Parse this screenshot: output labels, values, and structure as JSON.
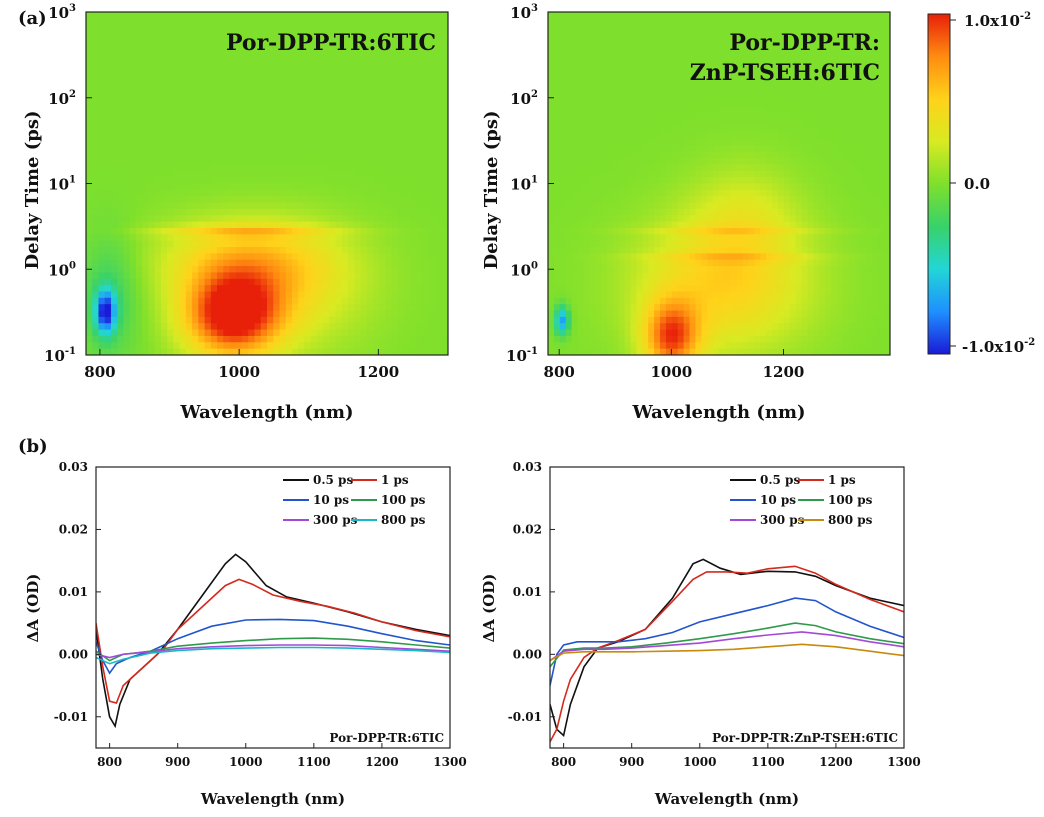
{
  "panel_labels": {
    "a": "(a)",
    "b": "(b)"
  },
  "colorbar": {
    "max_label": "1.0x10",
    "max_exp": "-2",
    "zero_label": "0.0",
    "min_label": "-1.0x10",
    "min_exp": "-2",
    "stops": [
      "#1a1ad8",
      "#1e90ff",
      "#22d6d6",
      "#38d26a",
      "#7ee02c",
      "#d8ea22",
      "#ffd21a",
      "#ff8c10",
      "#e8200a"
    ]
  },
  "chart_data": [
    {
      "type": "heatmap",
      "title": "Por-DPP-TR:6TIC",
      "xlabel": "Wavelength (nm)",
      "ylabel": "Delay Time (ps)",
      "xlim": [
        780,
        1300
      ],
      "ylim_log10": [
        -1,
        3
      ],
      "xticks": [
        800,
        1000,
        1200
      ],
      "yticks": [
        {
          "exp": -1,
          "base": "10",
          "sup": "-1"
        },
        {
          "exp": 0,
          "base": "10",
          "sup": "0"
        },
        {
          "exp": 1,
          "base": "10",
          "sup": "1"
        },
        {
          "exp": 2,
          "base": "10",
          "sup": "2"
        },
        {
          "exp": 3,
          "base": "10",
          "sup": "3"
        }
      ],
      "features": [
        {
          "wl": 990,
          "logt": -0.55,
          "sw": 50,
          "st": 0.35,
          "amp": 0.0105
        },
        {
          "wl": 1010,
          "logt": 0.1,
          "sw": 90,
          "st": 0.35,
          "amp": 0.0045
        },
        {
          "wl": 1080,
          "logt": -0.3,
          "sw": 80,
          "st": 0.5,
          "amp": 0.0025
        },
        {
          "wl": 1010,
          "logt": 0.44,
          "sw": 90,
          "st": 0.05,
          "amp": 0.003
        },
        {
          "wl": 808,
          "logt": -0.5,
          "sw": 10,
          "st": 0.18,
          "amp": -0.009
        },
        {
          "wl": 815,
          "logt": -0.3,
          "sw": 30,
          "st": 0.5,
          "amp": -0.0025
        }
      ]
    },
    {
      "type": "heatmap",
      "title": "Por-DPP-TR:",
      "title_line2": "ZnP-TSEH:6TIC",
      "xlabel": "Wavelength (nm)",
      "ylabel": "Delay Time (ps)",
      "xlim": [
        780,
        1390
      ],
      "ylim_log10": [
        -1,
        3
      ],
      "xticks": [
        800,
        1000,
        1200
      ],
      "yticks": [
        {
          "exp": -1,
          "base": "10",
          "sup": "-1"
        },
        {
          "exp": 0,
          "base": "10",
          "sup": "0"
        },
        {
          "exp": 1,
          "base": "10",
          "sup": "1"
        },
        {
          "exp": 2,
          "base": "10",
          "sup": "2"
        },
        {
          "exp": 3,
          "base": "10",
          "sup": "3"
        }
      ],
      "features": [
        {
          "wl": 1000,
          "logt": -0.8,
          "sw": 35,
          "st": 0.3,
          "amp": 0.008
        },
        {
          "wl": 1090,
          "logt": -0.2,
          "sw": 110,
          "st": 0.55,
          "amp": 0.0048
        },
        {
          "wl": 1130,
          "logt": 0.6,
          "sw": 70,
          "st": 0.45,
          "amp": 0.0022
        },
        {
          "wl": 1100,
          "logt": 0.13,
          "sw": 110,
          "st": 0.04,
          "amp": 0.0015
        },
        {
          "wl": 1100,
          "logt": 0.45,
          "sw": 110,
          "st": 0.04,
          "amp": 0.0015
        },
        {
          "wl": 805,
          "logt": -0.6,
          "sw": 9,
          "st": 0.12,
          "amp": -0.007
        }
      ]
    },
    {
      "type": "line",
      "inset_label": "Por-DPP-TR:6TIC",
      "xlabel": "Wavelength (nm)",
      "ylabel": "ΔA (OD)",
      "xlim": [
        780,
        1300
      ],
      "ylim": [
        -0.015,
        0.03
      ],
      "xticks": [
        800,
        900,
        1000,
        1100,
        1200,
        1300
      ],
      "yticks": [
        -0.01,
        0.0,
        0.01,
        0.02,
        0.03
      ],
      "ytick_labels": [
        "-0.01",
        "0.00",
        "0.01",
        "0.02",
        "0.03"
      ],
      "series": [
        {
          "name": "0.5 ps",
          "color": "#111111",
          "x": [
            780,
            790,
            800,
            808,
            815,
            830,
            850,
            870,
            900,
            940,
            970,
            985,
            1000,
            1030,
            1060,
            1100,
            1150,
            1200,
            1250,
            1300
          ],
          "y": [
            0.004,
            -0.004,
            -0.01,
            -0.0115,
            -0.008,
            -0.004,
            -0.002,
            0.0,
            0.004,
            0.01,
            0.0145,
            0.016,
            0.0148,
            0.011,
            0.0092,
            0.0082,
            0.0068,
            0.0052,
            0.004,
            0.003
          ]
        },
        {
          "name": "1 ps",
          "color": "#d42a1e",
          "x": [
            780,
            790,
            800,
            810,
            820,
            840,
            860,
            880,
            900,
            940,
            970,
            990,
            1010,
            1040,
            1080,
            1120,
            1160,
            1200,
            1250,
            1300
          ],
          "y": [
            0.005,
            -0.002,
            -0.0075,
            -0.0078,
            -0.005,
            -0.003,
            -0.001,
            0.001,
            0.004,
            0.008,
            0.011,
            0.012,
            0.0112,
            0.0095,
            0.0085,
            0.0077,
            0.0066,
            0.0052,
            0.0038,
            0.0028
          ]
        },
        {
          "name": "10 ps",
          "color": "#2255cc",
          "x": [
            780,
            790,
            800,
            810,
            830,
            860,
            900,
            950,
            1000,
            1050,
            1100,
            1150,
            1200,
            1250,
            1300
          ],
          "y": [
            0.002,
            -0.001,
            -0.003,
            -0.0015,
            -0.0005,
            0.0005,
            0.0025,
            0.0045,
            0.0055,
            0.0056,
            0.0054,
            0.0045,
            0.0033,
            0.0022,
            0.0015
          ]
        },
        {
          "name": "100 ps",
          "color": "#2f9a4a",
          "x": [
            780,
            800,
            820,
            860,
            900,
            950,
            1000,
            1050,
            1100,
            1150,
            1200,
            1250,
            1300
          ],
          "y": [
            0.0005,
            -0.001,
            0.0,
            0.0005,
            0.0013,
            0.0018,
            0.0022,
            0.0025,
            0.0026,
            0.0024,
            0.002,
            0.0015,
            0.001
          ]
        },
        {
          "name": "300 ps",
          "color": "#a24ad6",
          "x": [
            780,
            800,
            820,
            860,
            900,
            950,
            1000,
            1050,
            1100,
            1150,
            1200,
            1250,
            1300
          ],
          "y": [
            0.0,
            -0.0005,
            0.0,
            0.0004,
            0.0009,
            0.0012,
            0.0014,
            0.0015,
            0.0015,
            0.0014,
            0.0011,
            0.0008,
            0.0005
          ]
        },
        {
          "name": "800 ps",
          "color": "#19b8c8",
          "x": [
            780,
            800,
            820,
            860,
            900,
            950,
            1000,
            1050,
            1100,
            1150,
            1200,
            1250,
            1300
          ],
          "y": [
            -0.0005,
            -0.0015,
            -0.0008,
            0.0002,
            0.0006,
            0.0009,
            0.001,
            0.0011,
            0.0011,
            0.001,
            0.0008,
            0.0006,
            0.0003
          ]
        }
      ]
    },
    {
      "type": "line",
      "inset_label": "Por-DPP-TR:ZnP-TSEH:6TIC",
      "xlabel": "Wavelength (nm)",
      "ylabel": "ΔA (OD)",
      "xlim": [
        780,
        1300
      ],
      "ylim": [
        -0.015,
        0.03
      ],
      "xticks": [
        800,
        900,
        1000,
        1100,
        1200,
        1300
      ],
      "yticks": [
        -0.01,
        0.0,
        0.01,
        0.02,
        0.03
      ],
      "ytick_labels": [
        "-0.01",
        "0.00",
        "0.01",
        "0.02",
        "0.03"
      ],
      "series": [
        {
          "name": "0.5 ps",
          "color": "#111111",
          "x": [
            780,
            790,
            800,
            810,
            830,
            850,
            880,
            920,
            960,
            990,
            1005,
            1030,
            1060,
            1100,
            1140,
            1170,
            1200,
            1250,
            1300
          ],
          "y": [
            -0.008,
            -0.012,
            -0.013,
            -0.008,
            -0.002,
            0.001,
            0.002,
            0.004,
            0.009,
            0.0145,
            0.0152,
            0.0138,
            0.0128,
            0.0133,
            0.0132,
            0.0125,
            0.011,
            0.009,
            0.0078
          ]
        },
        {
          "name": "1 ps",
          "color": "#d42a1e",
          "x": [
            780,
            790,
            800,
            810,
            830,
            850,
            880,
            920,
            960,
            990,
            1010,
            1040,
            1070,
            1100,
            1140,
            1170,
            1200,
            1250,
            1300
          ],
          "y": [
            -0.014,
            -0.012,
            -0.0075,
            -0.004,
            -0.0005,
            0.001,
            0.0022,
            0.004,
            0.0085,
            0.012,
            0.0132,
            0.0132,
            0.013,
            0.0137,
            0.0141,
            0.013,
            0.0112,
            0.0088,
            0.0068
          ]
        },
        {
          "name": "10 ps",
          "color": "#2255cc",
          "x": [
            780,
            790,
            800,
            820,
            850,
            880,
            920,
            960,
            1000,
            1050,
            1100,
            1140,
            1170,
            1200,
            1250,
            1300
          ],
          "y": [
            -0.005,
            0.0,
            0.0015,
            0.002,
            0.002,
            0.002,
            0.0025,
            0.0035,
            0.0052,
            0.0065,
            0.0078,
            0.009,
            0.0086,
            0.0068,
            0.0045,
            0.0027
          ]
        },
        {
          "name": "100 ps",
          "color": "#2f9a4a",
          "x": [
            780,
            800,
            830,
            860,
            900,
            950,
            1000,
            1050,
            1100,
            1140,
            1170,
            1200,
            1250,
            1300
          ],
          "y": [
            -0.002,
            0.0007,
            0.001,
            0.001,
            0.0012,
            0.0018,
            0.0025,
            0.0033,
            0.0042,
            0.005,
            0.0046,
            0.0036,
            0.0025,
            0.0017
          ]
        },
        {
          "name": "300 ps",
          "color": "#a24ad6",
          "x": [
            780,
            800,
            830,
            860,
            900,
            950,
            1000,
            1050,
            1100,
            1150,
            1200,
            1250,
            1300
          ],
          "y": [
            -0.001,
            0.0005,
            0.0008,
            0.0008,
            0.001,
            0.0014,
            0.0018,
            0.0025,
            0.0031,
            0.0036,
            0.003,
            0.002,
            0.0012
          ]
        },
        {
          "name": "800 ps",
          "color": "#c88a0a",
          "x": [
            780,
            800,
            830,
            860,
            900,
            950,
            1000,
            1050,
            1100,
            1150,
            1200,
            1250,
            1300
          ],
          "y": [
            -0.001,
            0.0002,
            0.0004,
            0.0004,
            0.0004,
            0.0005,
            0.0006,
            0.0008,
            0.0012,
            0.0016,
            0.0012,
            0.0005,
            -0.0002
          ]
        }
      ]
    }
  ]
}
